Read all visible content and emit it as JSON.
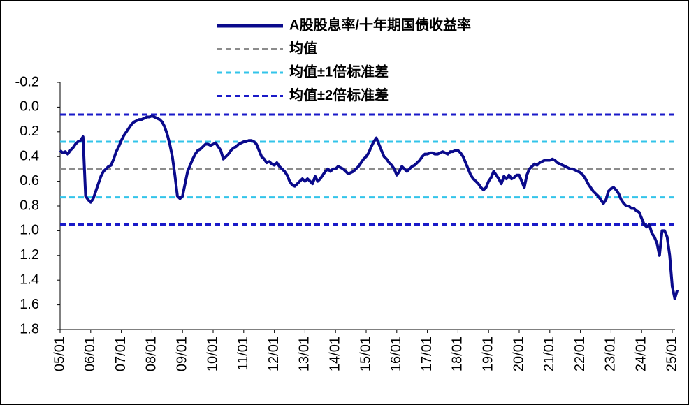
{
  "chart_data": {
    "type": "line",
    "ylim": [
      -0.2,
      1.8
    ],
    "y_inverted": true,
    "yticks": [
      -0.2,
      {
        "value": 0,
        "label": "0.0"
      },
      0.2,
      0.4,
      0.6,
      0.8,
      {
        "value": 1,
        "label": "1.0"
      },
      1.2,
      1.4,
      1.6,
      1.8
    ],
    "categories": [
      "05/01",
      null,
      null,
      null,
      null,
      null,
      null,
      null,
      null,
      null,
      null,
      null,
      "06/01",
      null,
      null,
      null,
      null,
      null,
      null,
      null,
      null,
      null,
      null,
      null,
      "07/01",
      null,
      null,
      null,
      null,
      null,
      null,
      null,
      null,
      null,
      null,
      null,
      "08/01",
      null,
      null,
      null,
      null,
      null,
      null,
      null,
      null,
      null,
      null,
      null,
      "09/01",
      null,
      null,
      null,
      null,
      null,
      null,
      null,
      null,
      null,
      null,
      null,
      "10/01",
      null,
      null,
      null,
      null,
      null,
      null,
      null,
      null,
      null,
      null,
      null,
      "11/01",
      null,
      null,
      null,
      null,
      null,
      null,
      null,
      null,
      null,
      null,
      null,
      "12/01",
      null,
      null,
      null,
      null,
      null,
      null,
      null,
      null,
      null,
      null,
      null,
      "13/01",
      null,
      null,
      null,
      null,
      null,
      null,
      null,
      null,
      null,
      null,
      null,
      "14/01",
      null,
      null,
      null,
      null,
      null,
      null,
      null,
      null,
      null,
      null,
      null,
      "15/01",
      null,
      null,
      null,
      null,
      null,
      null,
      null,
      null,
      null,
      null,
      null,
      "16/01",
      null,
      null,
      null,
      null,
      null,
      null,
      null,
      null,
      null,
      null,
      null,
      "17/01",
      null,
      null,
      null,
      null,
      null,
      null,
      null,
      null,
      null,
      null,
      null,
      "18/01",
      null,
      null,
      null,
      null,
      null,
      null,
      null,
      null,
      null,
      null,
      null,
      "19/01",
      null,
      null,
      null,
      null,
      null,
      null,
      null,
      null,
      null,
      null,
      null,
      "20/01",
      null,
      null,
      null,
      null,
      null,
      null,
      null,
      null,
      null,
      null,
      null,
      "21/01",
      null,
      null,
      null,
      null,
      null,
      null,
      null,
      null,
      null,
      null,
      null,
      "22/01",
      null,
      null,
      null,
      null,
      null,
      null,
      null,
      null,
      null,
      null,
      null,
      "23/01",
      null,
      null,
      null,
      null,
      null,
      null,
      null,
      null,
      null,
      null,
      null,
      "24/01",
      null,
      null,
      null,
      null,
      null,
      null,
      null,
      null,
      null,
      null,
      null,
      "25/01",
      null,
      null
    ],
    "series": [
      {
        "name": "A股股息率/十年期国债收益率",
        "color": "#0a0a8c",
        "values": [
          0.35,
          0.37,
          0.36,
          0.38,
          0.35,
          0.33,
          0.3,
          0.28,
          0.27,
          0.24,
          0.72,
          0.75,
          0.77,
          0.74,
          0.68,
          0.62,
          0.56,
          0.52,
          0.5,
          0.48,
          0.47,
          0.42,
          0.36,
          0.32,
          0.27,
          0.23,
          0.2,
          0.17,
          0.14,
          0.12,
          0.11,
          0.1,
          0.1,
          0.09,
          0.08,
          0.08,
          0.07,
          0.08,
          0.09,
          0.1,
          0.12,
          0.16,
          0.22,
          0.3,
          0.4,
          0.55,
          0.72,
          0.74,
          0.72,
          0.62,
          0.52,
          0.47,
          0.42,
          0.38,
          0.35,
          0.34,
          0.32,
          0.3,
          0.3,
          0.31,
          0.3,
          0.29,
          0.32,
          0.35,
          0.42,
          0.4,
          0.38,
          0.35,
          0.33,
          0.32,
          0.3,
          0.29,
          0.28,
          0.28,
          0.27,
          0.27,
          0.28,
          0.3,
          0.35,
          0.4,
          0.42,
          0.45,
          0.44,
          0.46,
          0.47,
          0.45,
          0.48,
          0.5,
          0.52,
          0.55,
          0.6,
          0.63,
          0.64,
          0.62,
          0.6,
          0.58,
          0.6,
          0.58,
          0.6,
          0.62,
          0.56,
          0.6,
          0.58,
          0.55,
          0.52,
          0.5,
          0.52,
          0.5,
          0.5,
          0.48,
          0.49,
          0.5,
          0.52,
          0.54,
          0.53,
          0.52,
          0.5,
          0.48,
          0.45,
          0.42,
          0.4,
          0.37,
          0.32,
          0.28,
          0.25,
          0.3,
          0.35,
          0.4,
          0.42,
          0.45,
          0.47,
          0.5,
          0.55,
          0.52,
          0.48,
          0.5,
          0.52,
          0.5,
          0.48,
          0.47,
          0.45,
          0.43,
          0.4,
          0.38,
          0.38,
          0.37,
          0.37,
          0.38,
          0.38,
          0.37,
          0.36,
          0.37,
          0.38,
          0.36,
          0.36,
          0.35,
          0.35,
          0.37,
          0.4,
          0.45,
          0.5,
          0.55,
          0.58,
          0.6,
          0.62,
          0.65,
          0.67,
          0.65,
          0.6,
          0.57,
          0.52,
          0.55,
          0.58,
          0.62,
          0.56,
          0.58,
          0.55,
          0.58,
          0.57,
          0.55,
          0.55,
          0.6,
          0.65,
          0.55,
          0.5,
          0.48,
          0.46,
          0.47,
          0.45,
          0.44,
          0.43,
          0.43,
          0.43,
          0.42,
          0.43,
          0.45,
          0.46,
          0.47,
          0.48,
          0.49,
          0.5,
          0.5,
          0.51,
          0.52,
          0.53,
          0.55,
          0.58,
          0.62,
          0.65,
          0.68,
          0.7,
          0.72,
          0.75,
          0.78,
          0.75,
          0.68,
          0.66,
          0.65,
          0.67,
          0.7,
          0.75,
          0.78,
          0.8,
          0.8,
          0.82,
          0.82,
          0.84,
          0.85,
          0.9,
          0.95,
          0.97,
          0.95,
          1.02,
          1.05,
          1.1,
          1.2,
          1.0,
          1.0,
          1.05,
          1.2,
          1.45,
          1.55,
          1.48
        ]
      }
    ],
    "reference_lines": [
      {
        "name": "均值",
        "color": "#8c8c8c",
        "levels": [
          0.5
        ]
      },
      {
        "name": "均值±1倍标准差",
        "color": "#33c4ea",
        "levels": [
          0.28,
          0.73
        ]
      },
      {
        "name": "均值±2倍标准差",
        "color": "#1a1ac8",
        "levels": [
          0.06,
          0.95
        ]
      }
    ]
  }
}
